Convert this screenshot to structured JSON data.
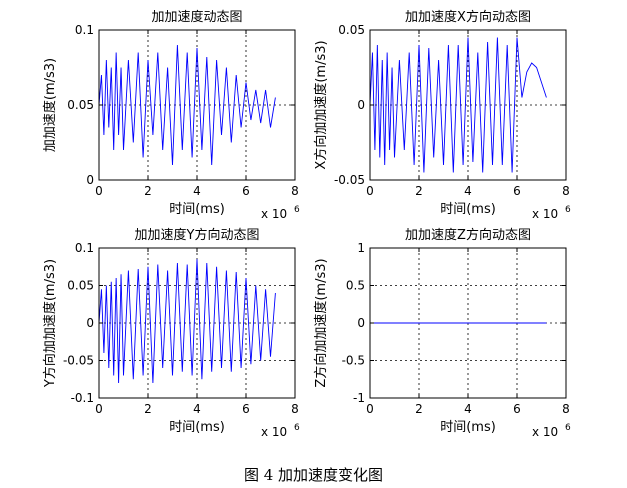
{
  "figure_caption": "图 4 加加速度变化图",
  "chart_data": [
    {
      "type": "line",
      "title": "加加速度动态图",
      "xlabel": "时间(ms)",
      "ylabel": "加加速度(m/s3)",
      "x_multiplier": "x 10",
      "x_multiplier_exp": "6",
      "xlim": [
        0,
        8
      ],
      "ylim": [
        0,
        0.1
      ],
      "xticks": [
        0,
        2,
        4,
        6,
        8
      ],
      "xtick_labels": [
        "0",
        "2",
        "4",
        "6",
        "8"
      ],
      "yticks": [
        0,
        0.05,
        0.1
      ],
      "ytick_labels": [
        "0",
        "0.05",
        "0.1"
      ],
      "grid": true,
      "line_color": "#0000ff",
      "series": [
        {
          "x": [
            0.0,
            0.1,
            0.2,
            0.3,
            0.4,
            0.5,
            0.6,
            0.7,
            0.8,
            0.9,
            1.0,
            1.2,
            1.4,
            1.6,
            1.8,
            2.0,
            2.2,
            2.4,
            2.6,
            2.8,
            3.0,
            3.2,
            3.4,
            3.6,
            3.8,
            4.0,
            4.2,
            4.4,
            4.6,
            4.8,
            5.0,
            5.2,
            5.4,
            5.6,
            5.8,
            6.0,
            6.2,
            6.4,
            6.6,
            6.8,
            7.0,
            7.2
          ],
          "y": [
            0.05,
            0.07,
            0.03,
            0.08,
            0.035,
            0.075,
            0.02,
            0.085,
            0.03,
            0.075,
            0.02,
            0.08,
            0.025,
            0.085,
            0.015,
            0.08,
            0.03,
            0.085,
            0.02,
            0.075,
            0.01,
            0.09,
            0.02,
            0.085,
            0.015,
            0.088,
            0.02,
            0.082,
            0.01,
            0.08,
            0.03,
            0.075,
            0.025,
            0.07,
            0.035,
            0.065,
            0.04,
            0.06,
            0.038,
            0.06,
            0.035,
            0.055
          ]
        }
      ]
    },
    {
      "type": "line",
      "title": "加加速度X方向动态图",
      "xlabel": "时间(ms)",
      "ylabel": "X方向加加速度(m/s3)",
      "x_multiplier": "x 10",
      "x_multiplier_exp": "6",
      "xlim": [
        0,
        8
      ],
      "ylim": [
        -0.05,
        0.05
      ],
      "xticks": [
        0,
        2,
        4,
        6,
        8
      ],
      "xtick_labels": [
        "0",
        "2",
        "4",
        "6",
        "8"
      ],
      "yticks": [
        -0.05,
        0,
        0.05
      ],
      "ytick_labels": [
        "-0.05",
        "0",
        "0.05"
      ],
      "grid": true,
      "line_color": "#0000ff",
      "series": [
        {
          "x": [
            0.0,
            0.1,
            0.2,
            0.3,
            0.4,
            0.5,
            0.6,
            0.7,
            0.8,
            0.9,
            1.0,
            1.2,
            1.4,
            1.6,
            1.8,
            2.0,
            2.2,
            2.4,
            2.6,
            2.8,
            3.0,
            3.2,
            3.4,
            3.6,
            3.8,
            4.0,
            4.2,
            4.4,
            4.6,
            4.8,
            5.0,
            5.2,
            5.4,
            5.6,
            5.8,
            6.0,
            6.2,
            6.4,
            6.6,
            6.8,
            7.0,
            7.2
          ],
          "y": [
            0.0,
            0.035,
            -0.03,
            0.04,
            -0.035,
            0.03,
            -0.04,
            0.035,
            -0.03,
            0.025,
            -0.035,
            0.03,
            -0.03,
            0.035,
            -0.04,
            0.04,
            -0.045,
            0.038,
            -0.035,
            0.03,
            -0.04,
            0.04,
            -0.045,
            0.04,
            -0.04,
            0.045,
            -0.038,
            0.035,
            -0.045,
            0.042,
            -0.04,
            0.045,
            -0.04,
            0.04,
            -0.045,
            0.045,
            0.005,
            0.022,
            0.028,
            0.025,
            0.015,
            0.005
          ]
        }
      ]
    },
    {
      "type": "line",
      "title": "加加速度Y方向动态图",
      "xlabel": "时间(ms)",
      "ylabel": "Y方向加加速度(m/s3)",
      "x_multiplier": "x 10",
      "x_multiplier_exp": "6",
      "xlim": [
        0,
        8
      ],
      "ylim": [
        -0.1,
        0.1
      ],
      "xticks": [
        0,
        2,
        4,
        6,
        8
      ],
      "xtick_labels": [
        "0",
        "2",
        "4",
        "6",
        "8"
      ],
      "yticks": [
        -0.1,
        -0.05,
        0,
        0.05,
        0.1
      ],
      "ytick_labels": [
        "-0.1",
        "-0.05",
        "0",
        "0.05",
        "0.1"
      ],
      "grid": true,
      "line_color": "#0000ff",
      "series": [
        {
          "x": [
            0.0,
            0.1,
            0.2,
            0.3,
            0.4,
            0.5,
            0.6,
            0.7,
            0.8,
            0.9,
            1.0,
            1.2,
            1.4,
            1.6,
            1.8,
            2.0,
            2.2,
            2.4,
            2.6,
            2.8,
            3.0,
            3.2,
            3.4,
            3.6,
            3.8,
            4.0,
            4.2,
            4.4,
            4.6,
            4.8,
            5.0,
            5.2,
            5.4,
            5.6,
            5.8,
            6.0,
            6.2,
            6.4,
            6.6,
            6.8,
            7.0,
            7.2
          ],
          "y": [
            0.0,
            0.045,
            -0.04,
            0.05,
            -0.06,
            0.055,
            -0.07,
            0.06,
            -0.08,
            0.065,
            -0.07,
            0.07,
            -0.075,
            0.072,
            -0.07,
            0.075,
            -0.08,
            0.078,
            -0.06,
            0.07,
            -0.07,
            0.08,
            -0.065,
            0.078,
            -0.07,
            0.085,
            -0.075,
            0.08,
            -0.065,
            0.075,
            -0.06,
            0.07,
            -0.065,
            0.068,
            -0.06,
            0.06,
            -0.055,
            0.05,
            -0.05,
            0.045,
            -0.045,
            0.04
          ]
        }
      ]
    },
    {
      "type": "line",
      "title": "加加速度Z方向动态图",
      "xlabel": "时间(ms)",
      "ylabel": "Z方向加加速度(m/s3)",
      "x_multiplier": "x 10",
      "x_multiplier_exp": "6",
      "xlim": [
        0,
        8
      ],
      "ylim": [
        -1,
        1
      ],
      "xticks": [
        0,
        2,
        4,
        6,
        8
      ],
      "xtick_labels": [
        "0",
        "2",
        "4",
        "6",
        "8"
      ],
      "yticks": [
        -1,
        -0.5,
        0,
        0.5,
        1
      ],
      "ytick_labels": [
        "-1",
        "-0.5",
        "0",
        "0.5",
        "1"
      ],
      "grid": true,
      "line_color": "#0000ff",
      "series": [
        {
          "x": [
            0.0,
            7.2
          ],
          "y": [
            0,
            0
          ]
        }
      ]
    }
  ]
}
